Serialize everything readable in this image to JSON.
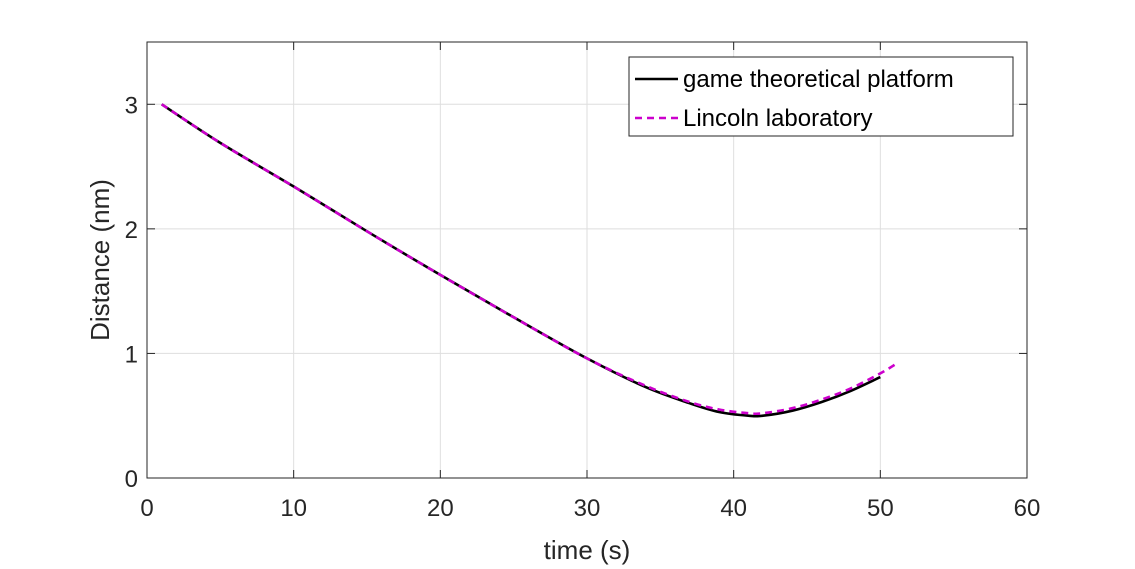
{
  "chart_data": {
    "type": "line",
    "title": "",
    "xlabel": "time (s)",
    "ylabel": "Distance (nm)",
    "xlim": [
      0,
      60
    ],
    "ylim": [
      0,
      3.5
    ],
    "xticks": [
      0,
      10,
      20,
      30,
      40,
      50,
      60
    ],
    "yticks": [
      0,
      1,
      2,
      3
    ],
    "xtick_labels": [
      "0",
      "10",
      "20",
      "30",
      "40",
      "50",
      "60"
    ],
    "ytick_labels": [
      "0",
      "1",
      "2",
      "3"
    ],
    "grid": true,
    "legend_position": "top-right",
    "series": [
      {
        "name": "game theoretical platform",
        "color": "#000000",
        "style": "solid",
        "x": [
          1,
          5,
          10,
          15,
          20,
          25,
          30,
          34,
          37,
          39,
          41,
          42,
          44,
          46,
          48,
          50
        ],
        "y": [
          3.0,
          2.69,
          2.34,
          1.98,
          1.63,
          1.29,
          0.96,
          0.73,
          0.6,
          0.53,
          0.5,
          0.5,
          0.54,
          0.61,
          0.7,
          0.81
        ]
      },
      {
        "name": "Lincoln laboratory",
        "color": "#cc00cc",
        "style": "dashed",
        "x": [
          1,
          5,
          10,
          15,
          20,
          25,
          30,
          34,
          37,
          39,
          41,
          42,
          44,
          46,
          48,
          50,
          51
        ],
        "y": [
          3.0,
          2.69,
          2.34,
          1.98,
          1.63,
          1.29,
          0.96,
          0.74,
          0.61,
          0.55,
          0.52,
          0.52,
          0.56,
          0.63,
          0.72,
          0.84,
          0.91
        ]
      }
    ]
  }
}
